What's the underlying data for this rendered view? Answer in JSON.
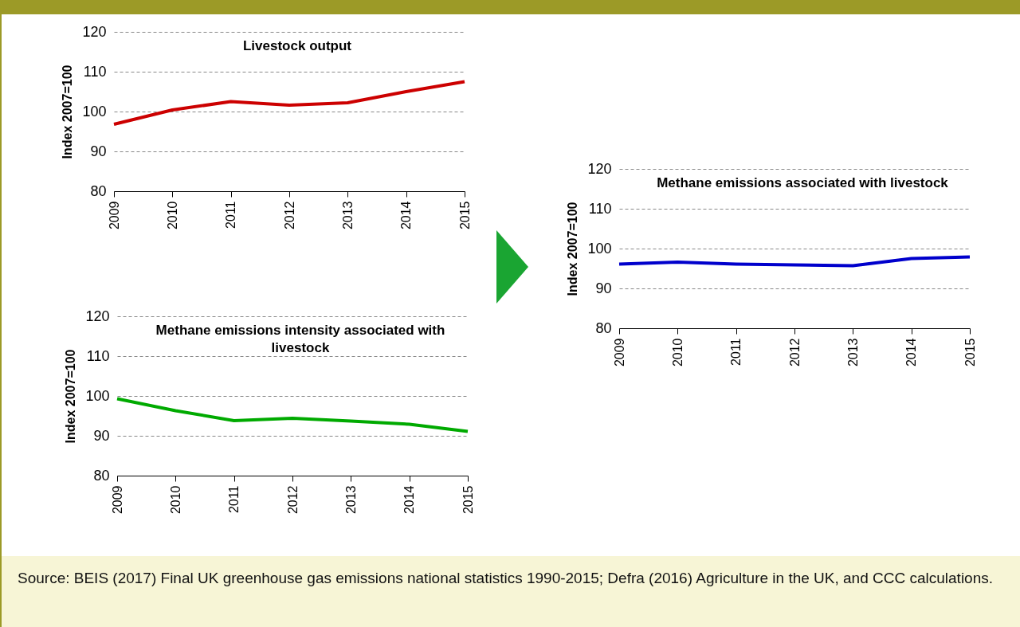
{
  "chart_data": [
    {
      "type": "line",
      "title": "Livestock output",
      "ylabel": "Index 2007=100",
      "categories": [
        "2009",
        "2010",
        "2011",
        "2012",
        "2013",
        "2014",
        "2015"
      ],
      "series": [
        {
          "color": "#cc0000",
          "values": [
            96.8,
            100.4,
            102.5,
            101.6,
            102.2,
            105.0,
            107.5
          ]
        }
      ],
      "ylim": [
        80,
        120
      ],
      "yticks": [
        80,
        90,
        100,
        110,
        120
      ],
      "grid": "y",
      "annotations": [
        "Source: BEIS (2017) Final UK greenhouse gas emissions national statistics 1990-2015; Defra (2016) Agriculture in the UK, and CCC calculations."
      ]
    },
    {
      "type": "line",
      "title": "Methane emissions associated with livestock",
      "ylabel": "Index 2007=100",
      "categories": [
        "2009",
        "2010",
        "2011",
        "2012",
        "2013",
        "2014",
        "2015"
      ],
      "series": [
        {
          "color": "#0000cc",
          "values": [
            96.1,
            96.6,
            96.1,
            95.9,
            95.7,
            97.5,
            97.9
          ]
        }
      ],
      "ylim": [
        80,
        120
      ],
      "yticks": [
        80,
        90,
        100,
        110,
        120
      ],
      "grid": "y"
    },
    {
      "type": "line",
      "title": "Methane emissions intensity associated with livestock",
      "ylabel": "Index 2007=100",
      "categories": [
        "2009",
        "2010",
        "2011",
        "2012",
        "2013",
        "2014",
        "2015"
      ],
      "series": [
        {
          "color": "#00aa00",
          "values": [
            99.3,
            96.3,
            93.8,
            94.4,
            93.7,
            92.9,
            91.1
          ]
        }
      ],
      "ylim": [
        80,
        120
      ],
      "yticks": [
        80,
        90,
        100,
        110,
        120
      ],
      "grid": "y"
    }
  ]
}
